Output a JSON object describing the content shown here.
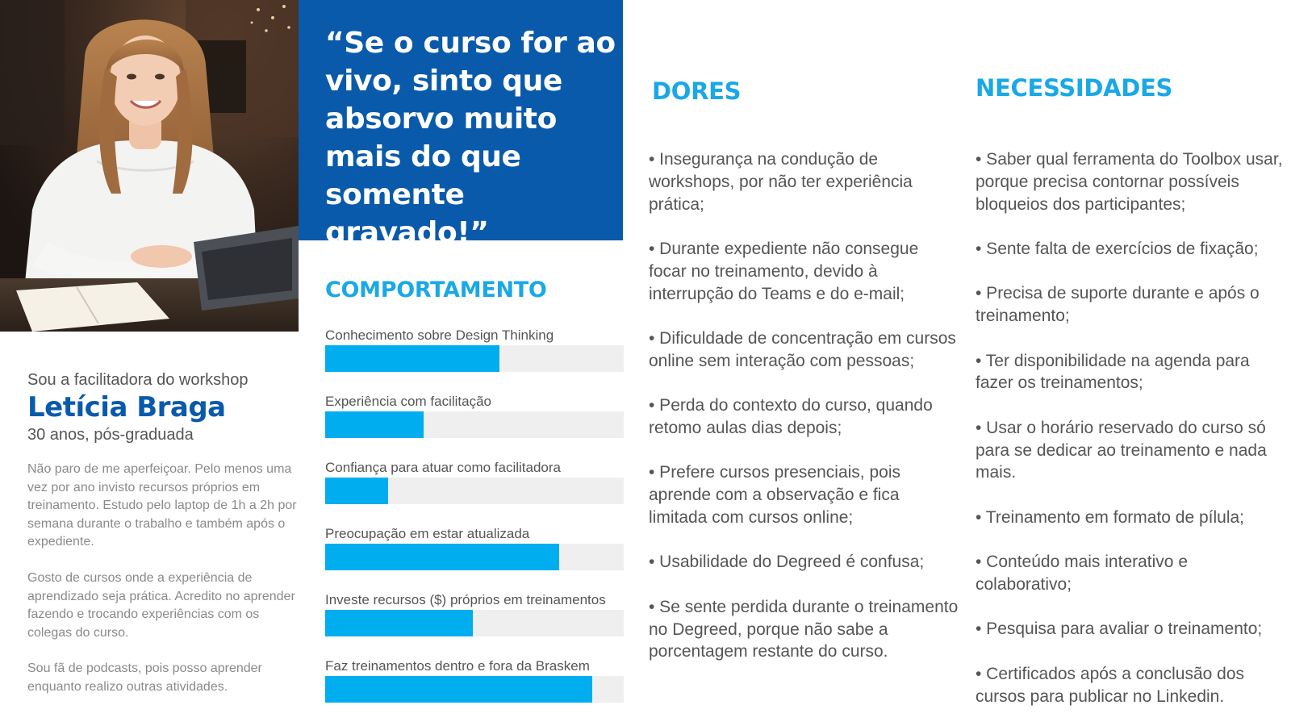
{
  "colors": {
    "primary_blue": "#0a5aab",
    "accent_cyan": "#1aa8e6",
    "bar_fill": "#00aeef",
    "bar_track": "#efefef"
  },
  "profile": {
    "intro": "Sou a facilitadora do workshop",
    "name": "Letícia Braga",
    "subtitle": "30 anos, pós-graduada",
    "bio": [
      "Não paro de me aperfeiçoar. Pelo menos uma vez por ano invisto recursos próprios em treinamento. Estudo pelo laptop de 1h a 2h por semana durante o trabalho e também após o expediente.",
      "Gosto de cursos onde a experiência de aprendizado seja prática. Acredito no aprender fazendo e trocando experiências com os colegas do curso.",
      "Sou fã de podcasts, pois posso aprender enquanto realizo outras atividades."
    ]
  },
  "quote": "“Se o curso for ao vivo, sinto que absorvo muito mais do que somente gravado!”",
  "behavior": {
    "title": "COMPORTAMENTO",
    "metrics": [
      {
        "label": "Conhecimento sobre Design Thinking",
        "level": 0.585
      },
      {
        "label": "Experiência com facilitação",
        "level": 0.33
      },
      {
        "label": "Confiança para atuar como facilitadora",
        "level": 0.21
      },
      {
        "label": "Preocupação em estar atualizada",
        "level": 0.785
      },
      {
        "label": "Investe recursos ($) próprios em treinamentos",
        "level": 0.495
      },
      {
        "label": "Faz treinamentos dentro e fora da Braskem",
        "level": 0.895
      }
    ]
  },
  "dores": {
    "title": "DORES",
    "items": [
      "• Insegurança na condução de workshops, por não ter experiência prática;",
      "• Durante expediente não consegue focar no treinamento, devido à interrupção do Teams e do e-mail;",
      "• Dificuldade de concentração em cursos online sem interação com pessoas;",
      "• Perda do contexto do curso, quando retomo aulas dias depois;",
      "• Prefere cursos presenciais, pois aprende com a observação e fica limitada com cursos online;",
      "• Usabilidade do Degreed é confusa;",
      "• Se sente perdida durante o treinamento no Degreed, porque não sabe a porcentagem restante do curso."
    ]
  },
  "necessidades": {
    "title": "NECESSIDADES",
    "items": [
      "• Saber qual ferramenta do Toolbox usar, porque precisa contornar possíveis bloqueios dos participantes;",
      "• Sente falta de exercícios de fixação;",
      "• Precisa de suporte durante e após o treinamento;",
      "• Ter disponibilidade na agenda para fazer os treinamentos;",
      "• Usar o horário reservado do curso só para se dedicar ao treinamento e nada mais.",
      "• Treinamento em formato de pílula;",
      "• Conteúdo mais interativo e colaborativo;",
      "• Pesquisa para avaliar o treinamento;",
      "• Certificados após a conclusão dos cursos para publicar no Linkedin."
    ]
  }
}
